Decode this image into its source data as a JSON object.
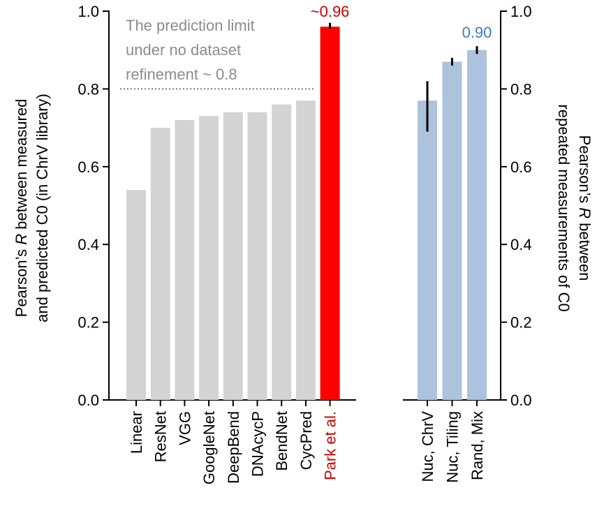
{
  "colors": {
    "gray_bar": "#d3d3d3",
    "highlight_bar": "#ff0000",
    "highlight_text": "#cc0000",
    "blue_bar": "#adc2dc",
    "blue_text": "#3b7dbf",
    "reference_text": "#8c8c8c",
    "reference_line": "#777777"
  },
  "chart_data": [
    {
      "type": "bar",
      "categories": [
        "Linear",
        "ResNet",
        "VGG",
        "GoogleNet",
        "DeepBend",
        "DNAcycP",
        "BendNet",
        "CycPred",
        "Park et al."
      ],
      "values": [
        0.54,
        0.7,
        0.72,
        0.73,
        0.74,
        0.74,
        0.76,
        0.77,
        0.96
      ],
      "error": [
        null,
        null,
        null,
        null,
        null,
        null,
        null,
        null,
        [
          0.955,
          0.97
        ]
      ],
      "highlight_index": 8,
      "value_annotation": "~0.96",
      "ylabel_parts": [
        "Pearson’s ",
        "R",
        " between measured"
      ],
      "ylabel_line2": "and predicted C0 (in ChrV library)",
      "ylim": [
        0,
        1.0
      ],
      "yticks": [
        "0.0",
        "0.2",
        "0.4",
        "0.6",
        "0.8",
        "1.0"
      ],
      "reference_line": {
        "y": 0.8,
        "text_lines": [
          "The prediction limit",
          "under no dataset",
          "refinement ~ 0.8"
        ]
      }
    },
    {
      "type": "bar",
      "categories": [
        "Nuc, ChrV",
        "Nuc, Tiling",
        "Rand, Mix"
      ],
      "values": [
        0.77,
        0.87,
        0.9
      ],
      "error": [
        [
          0.69,
          0.82
        ],
        [
          0.86,
          0.88
        ],
        [
          0.89,
          0.91
        ]
      ],
      "value_annotation": "0.90",
      "ylabel_parts": [
        "Pearson’s ",
        "R",
        " between"
      ],
      "ylabel_line2": "repeated measurements of C0",
      "ylim": [
        0,
        1.0
      ],
      "yticks": [
        "0.0",
        "0.2",
        "0.4",
        "0.6",
        "0.8",
        "1.0"
      ]
    }
  ]
}
